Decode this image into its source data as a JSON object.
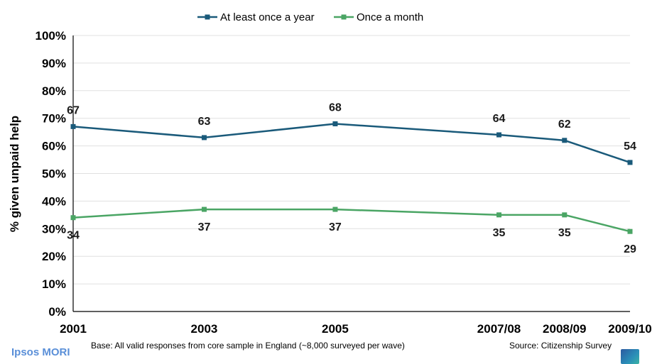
{
  "colors": {
    "series_1": "#1a5a7a",
    "series_2": "#4aa564",
    "gridline": "#e0e0e0",
    "axis": "#000000"
  },
  "footer": {
    "base_note": "Base: All valid responses from core sample in England (~8,000 surveyed per wave)",
    "source": "Source: Citizenship Survey"
  },
  "logo": {
    "text": "Ipsos MORI",
    "icon": "ipsos-logo-icon"
  },
  "chart_data": {
    "type": "line",
    "title": "",
    "xlabel": "",
    "ylabel": "% given unpaid help",
    "categories": [
      "2001",
      "2003",
      "2005",
      "2007/08",
      "2008/09",
      "2009/10"
    ],
    "x_positions_years": [
      2001,
      2003,
      2005,
      2007.5,
      2008.5,
      2009.5
    ],
    "ylim": [
      0,
      100
    ],
    "yticks": [
      0,
      10,
      20,
      30,
      40,
      50,
      60,
      70,
      80,
      90,
      100
    ],
    "ytick_labels": [
      "0%",
      "10%",
      "20%",
      "30%",
      "40%",
      "50%",
      "60%",
      "70%",
      "80%",
      "90%",
      "100%"
    ],
    "grid": true,
    "legend_position": "top",
    "series": [
      {
        "name": "At least once a year",
        "values": [
          67,
          63,
          68,
          64,
          62,
          54
        ],
        "color": "#1a5a7a",
        "labels_above": true
      },
      {
        "name": "Once a month",
        "values": [
          34,
          37,
          37,
          35,
          35,
          29
        ],
        "color": "#4aa564",
        "labels_above": false
      }
    ]
  }
}
